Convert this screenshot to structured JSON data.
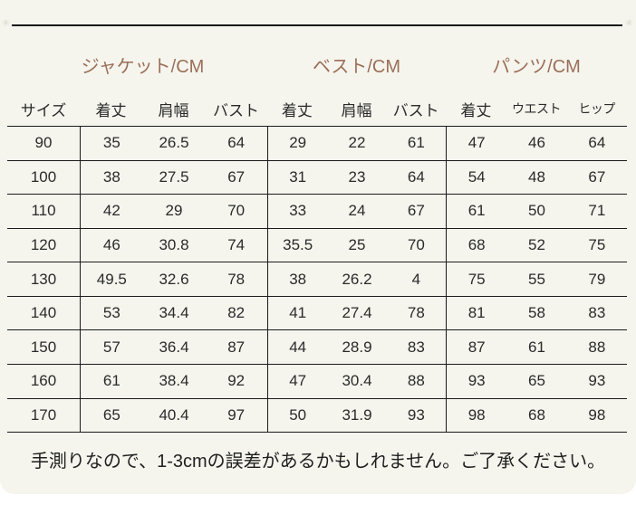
{
  "decor": {
    "mark": "✳"
  },
  "colors": {
    "card_background": "#f5f5ee",
    "accent_brown": "#9c6e57",
    "line": "#1a1a1a",
    "text": "#2a2a2a"
  },
  "table": {
    "size_header": "サイズ",
    "groups": [
      {
        "title": "ジャケット/CM",
        "columns": [
          "着丈",
          "肩幅",
          "バスト"
        ]
      },
      {
        "title": "ベスト/CM",
        "columns": [
          "着丈",
          "肩幅",
          "バスト"
        ]
      },
      {
        "title": "パンツ/CM",
        "columns": [
          "着丈",
          "ウエスト",
          "ヒップ"
        ]
      }
    ],
    "rows": [
      {
        "size": "90",
        "jacket": [
          "35",
          "26.5",
          "64"
        ],
        "vest": [
          "29",
          "22",
          "61"
        ],
        "pants": [
          "47",
          "46",
          "64"
        ]
      },
      {
        "size": "100",
        "jacket": [
          "38",
          "27.5",
          "67"
        ],
        "vest": [
          "31",
          "23",
          "64"
        ],
        "pants": [
          "54",
          "48",
          "67"
        ]
      },
      {
        "size": "110",
        "jacket": [
          "42",
          "29",
          "70"
        ],
        "vest": [
          "33",
          "24",
          "67"
        ],
        "pants": [
          "61",
          "50",
          "71"
        ]
      },
      {
        "size": "120",
        "jacket": [
          "46",
          "30.8",
          "74"
        ],
        "vest": [
          "35.5",
          "25",
          "70"
        ],
        "pants": [
          "68",
          "52",
          "75"
        ]
      },
      {
        "size": "130",
        "jacket": [
          "49.5",
          "32.6",
          "78"
        ],
        "vest": [
          "38",
          "26.2",
          "4"
        ],
        "pants": [
          "75",
          "55",
          "79"
        ]
      },
      {
        "size": "140",
        "jacket": [
          "53",
          "34.4",
          "82"
        ],
        "vest": [
          "41",
          "27.4",
          "78"
        ],
        "pants": [
          "81",
          "58",
          "83"
        ]
      },
      {
        "size": "150",
        "jacket": [
          "57",
          "36.4",
          "87"
        ],
        "vest": [
          "44",
          "28.9",
          "83"
        ],
        "pants": [
          "87",
          "61",
          "88"
        ]
      },
      {
        "size": "160",
        "jacket": [
          "61",
          "38.4",
          "92"
        ],
        "vest": [
          "47",
          "30.4",
          "88"
        ],
        "pants": [
          "93",
          "65",
          "93"
        ]
      },
      {
        "size": "170",
        "jacket": [
          "65",
          "40.4",
          "97"
        ],
        "vest": [
          "50",
          "31.9",
          "93"
        ],
        "pants": [
          "98",
          "68",
          "98"
        ]
      }
    ]
  },
  "note": {
    "text": "手測りなので、1-3cmの誤差があるかもしれません。ご了承ください。"
  }
}
